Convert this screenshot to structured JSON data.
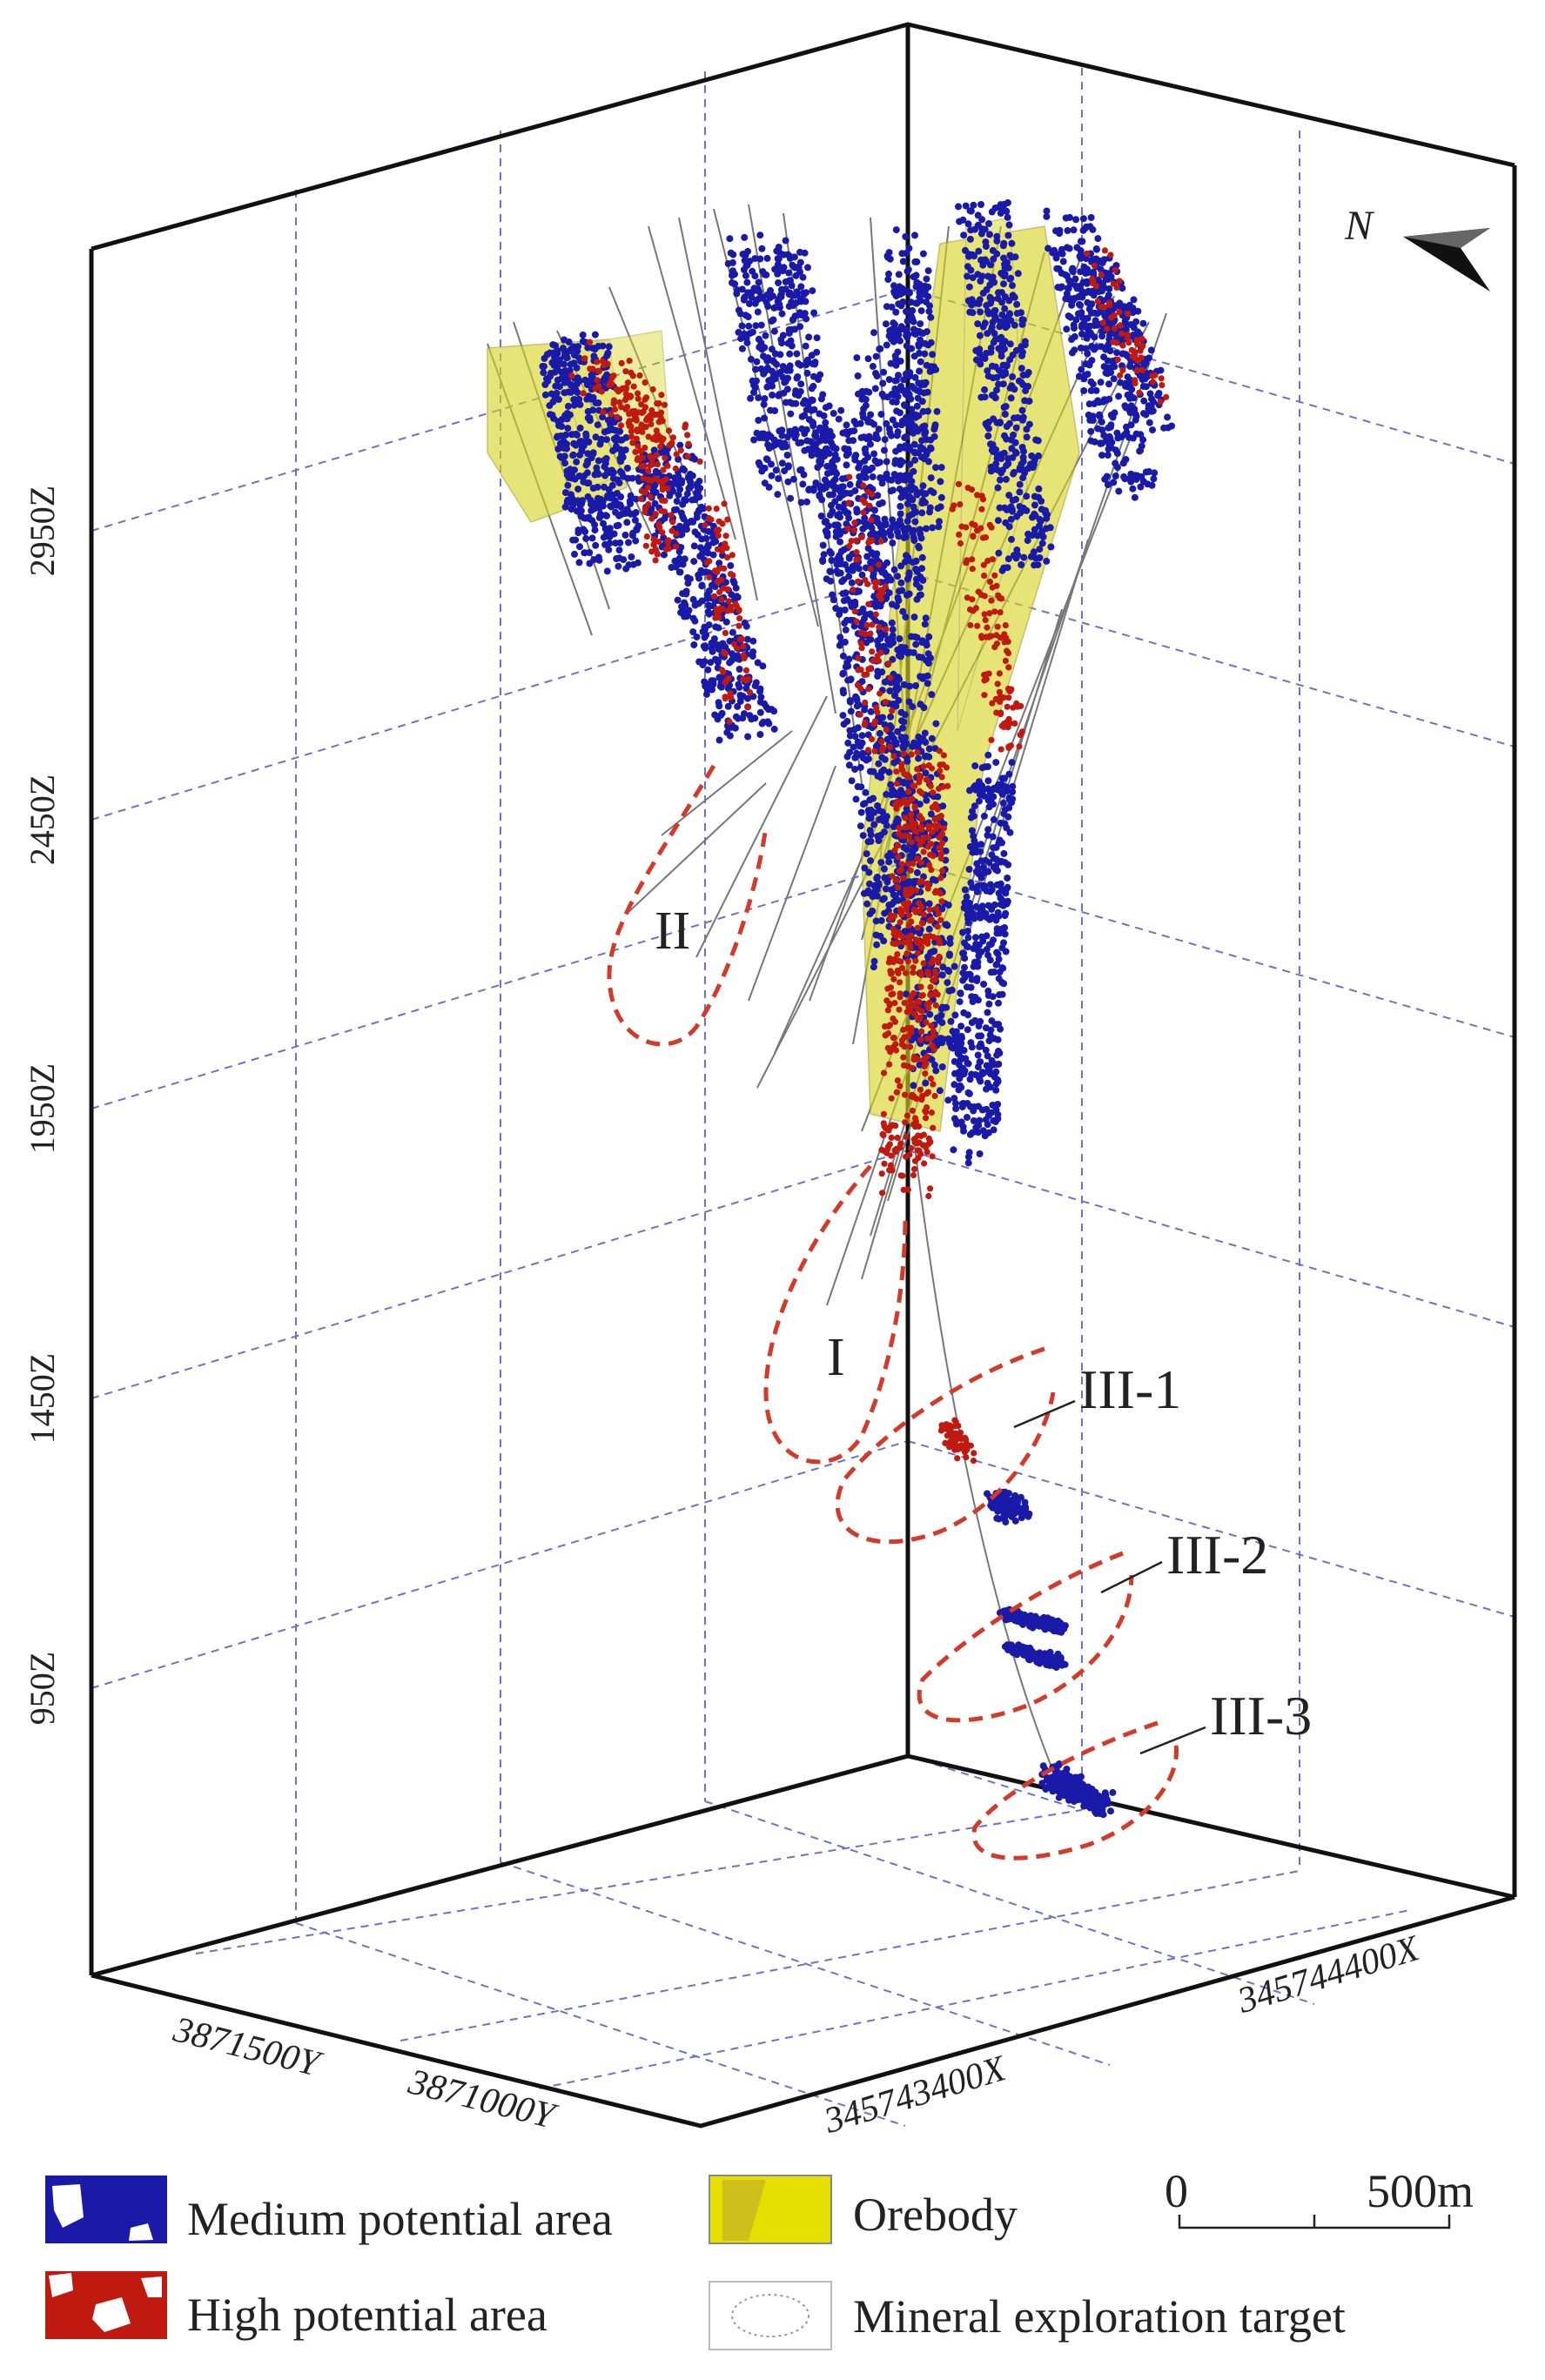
{
  "north_label": "N",
  "z_axis_labels": [
    "2950Z",
    "2450Z",
    "1950Z",
    "1450Z",
    "950Z"
  ],
  "y_axis_labels": [
    "3871500Y",
    "3871000Y"
  ],
  "x_axis_labels": [
    "345743400X",
    "345744400X"
  ],
  "target_labels": {
    "I": "I",
    "II": "II",
    "III_1": "III-1",
    "III_2": "III-2",
    "III_3": "III-3"
  },
  "legend": {
    "medium": "Medium potential area",
    "high": "High potential area",
    "orebody": "Orebody",
    "target": "Mineral exploration target"
  },
  "scale_bar": {
    "start": "0",
    "end": "500m"
  },
  "colors": {
    "medium": "#1a1aa8",
    "high": "#c01a10",
    "orebody": "#d8d424",
    "target": "#d23a2a",
    "grid": "#6b72c8"
  }
}
